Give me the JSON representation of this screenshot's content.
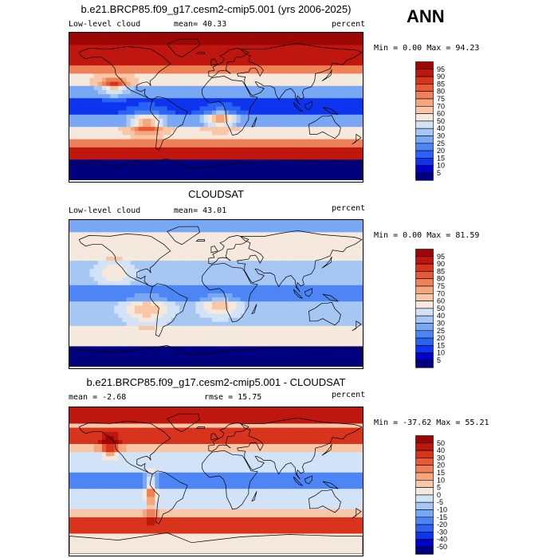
{
  "season": "ANN",
  "colors": {
    "abs_scale": [
      "#00007f",
      "#0000c8",
      "#0d35ee",
      "#2a62f5",
      "#4d85f5",
      "#78a7f3",
      "#a6c6f3",
      "#d2e2f7",
      "#f5e8dc",
      "#f8c7a8",
      "#f4a67d",
      "#ee8157",
      "#e65b34",
      "#d8341d",
      "#bf160f",
      "#9c0605"
    ],
    "diff_scale": [
      "#00007f",
      "#0000c8",
      "#0d35ee",
      "#2a62f5",
      "#4d85f5",
      "#78a7f3",
      "#a6c6f3",
      "#d2e2f7",
      "#f5e8dc",
      "#f8c7a8",
      "#f4a67d",
      "#ee8157",
      "#e65b34",
      "#d8341d",
      "#bf160f",
      "#9c0605"
    ],
    "coast": "#000000"
  },
  "panels": [
    {
      "title": "b.e21.BRCP85.f09_g17.cesm2-cmip5.001 (yrs 2006-2025)",
      "left_text": "Low-level cloud",
      "stat_text": "mean=  40.33",
      "unit_text": "percent",
      "minmax_text": "Min =   0.00 Max =  94.23",
      "levels": [
        "95",
        "90",
        "85",
        "80",
        "75",
        "70",
        "60",
        "50",
        "40",
        "30",
        "25",
        "20",
        "15",
        "10",
        "5"
      ],
      "kind": "model"
    },
    {
      "title": "CLOUDSAT",
      "left_text": "Low-level cloud",
      "stat_text": "mean=  43.01",
      "unit_text": "percent",
      "minmax_text": "Min =   0.00 Max =  81.59",
      "levels": [
        "95",
        "90",
        "85",
        "80",
        "75",
        "70",
        "60",
        "50",
        "40",
        "30",
        "25",
        "20",
        "15",
        "10",
        "5"
      ],
      "kind": "obs"
    },
    {
      "title": "b.e21.BRCP85.f09_g17.cesm2-cmip5.001 - CLOUDSAT",
      "left_text": "mean =  -2.68",
      "stat_text": "rmse =  15.75",
      "unit_text": "percent",
      "minmax_text": "Min = -37.62 Max =  55.21",
      "levels": [
        "50",
        "40",
        "30",
        "20",
        "15",
        "10",
        "5",
        "0",
        "-5",
        "-10",
        "-15",
        "-20",
        "-30",
        "-40",
        "-50"
      ],
      "kind": "diff"
    }
  ]
}
